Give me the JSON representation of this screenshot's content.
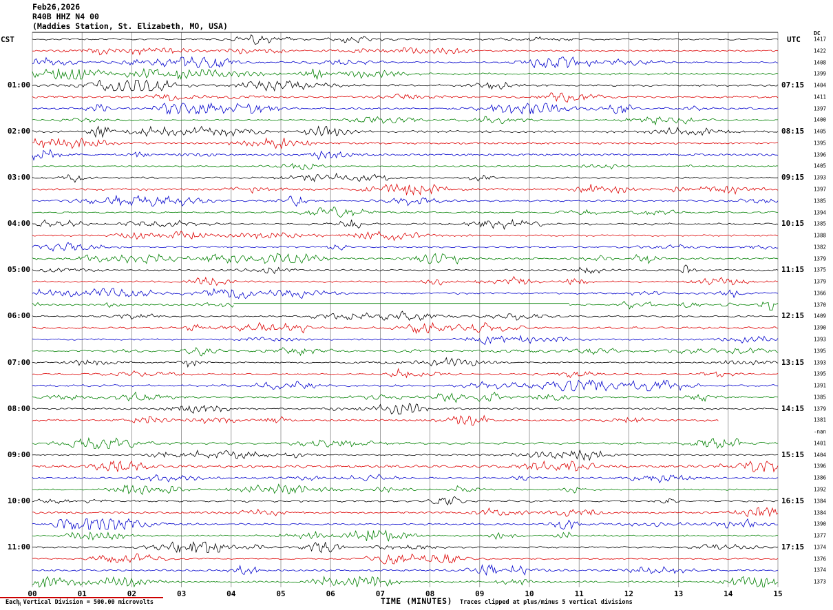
{
  "header": {
    "date": "Feb26,2026",
    "station": "R40B HHZ N4 00",
    "location": "(Maddies Station, St. Elizabeth, MO, USA)",
    "tz_left": "CST",
    "tz_right": "UTC",
    "dc_label": "DC"
  },
  "footer": {
    "scale_note": "Each Vertical Division =  500.00 microvolts",
    "clip_note": "Traces clipped at plus/minus 5 vertical divisions",
    "corner_mark": "M"
  },
  "chart_data": {
    "type": "line",
    "subtype": "helicorder-seismogram",
    "title": "R40B HHZ N4 00 (Maddies Station, St. Elizabeth, MO, USA) Feb26,2026",
    "xlabel": "TIME (MINUTES)",
    "x_ticks": [
      "00",
      "01",
      "02",
      "03",
      "04",
      "05",
      "06",
      "07",
      "08",
      "09",
      "10",
      "11",
      "12",
      "13",
      "14",
      "15"
    ],
    "x_range_minutes": [
      0,
      15
    ],
    "minutes_per_row": 15,
    "num_rows": 48,
    "rows_per_hour": 4,
    "grid": true,
    "trace_colors": [
      "#000000",
      "#dd0000",
      "#0000cc",
      "#008000"
    ],
    "left_time_labels": [
      {
        "row": 4,
        "label": "01:00"
      },
      {
        "row": 8,
        "label": "02:00"
      },
      {
        "row": 12,
        "label": "03:00"
      },
      {
        "row": 16,
        "label": "04:00"
      },
      {
        "row": 20,
        "label": "05:00"
      },
      {
        "row": 24,
        "label": "06:00"
      },
      {
        "row": 28,
        "label": "07:00"
      },
      {
        "row": 32,
        "label": "08:00"
      },
      {
        "row": 36,
        "label": "09:00"
      },
      {
        "row": 40,
        "label": "10:00"
      },
      {
        "row": 44,
        "label": "11:00"
      }
    ],
    "right_time_labels": [
      {
        "row": 4,
        "label": "07:15"
      },
      {
        "row": 8,
        "label": "08:15"
      },
      {
        "row": 12,
        "label": "09:15"
      },
      {
        "row": 16,
        "label": "10:15"
      },
      {
        "row": 20,
        "label": "11:15"
      },
      {
        "row": 24,
        "label": "12:15"
      },
      {
        "row": 28,
        "label": "13:15"
      },
      {
        "row": 32,
        "label": "14:15"
      },
      {
        "row": 36,
        "label": "15:15"
      },
      {
        "row": 40,
        "label": "16:15"
      },
      {
        "row": 44,
        "label": "17:15"
      }
    ],
    "dc_values": [
      "1417",
      "1422",
      "1408",
      "1399",
      "1404",
      "1411",
      "1397",
      "1400",
      "1405",
      "1395",
      "1396",
      "1405",
      "1393",
      "1397",
      "1385",
      "1394",
      "1385",
      "1388",
      "1382",
      "1379",
      "1375",
      "1379",
      "1366",
      "1370",
      "1409",
      "1390",
      "1393",
      "1395",
      "1393",
      "1395",
      "1391",
      "1385",
      "1379",
      "1381",
      "-nan",
      "1401",
      "1404",
      "1396",
      "1386",
      "1392",
      "1384",
      "1384",
      "1390",
      "1377",
      "1374",
      "1376",
      "1374",
      "1373"
    ],
    "anomalies": {
      "missing_trace_row": 34,
      "truncated_trace": {
        "row": 33,
        "end_fraction": 0.92
      },
      "flat_segment": {
        "row": 23,
        "start_fraction": 0.27,
        "end_fraction": 0.72
      }
    },
    "clip_divisions": 5,
    "microvolts_per_division": 500.0
  }
}
